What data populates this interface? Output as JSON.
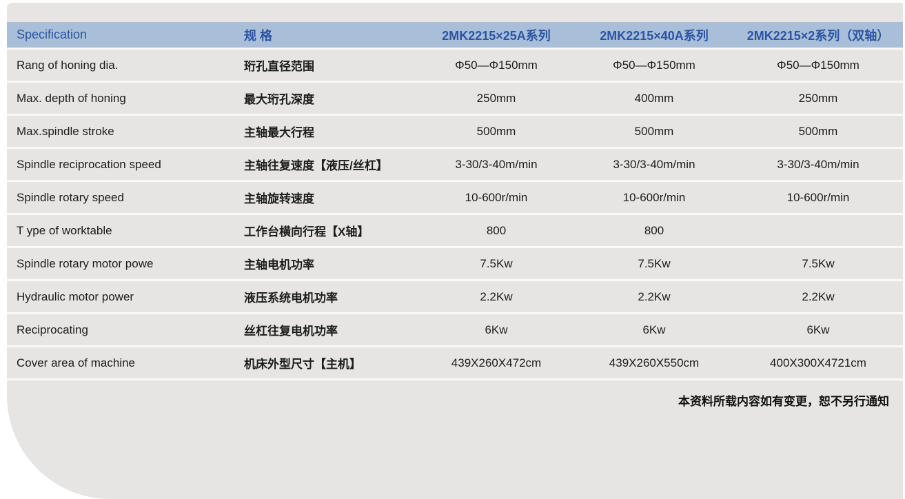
{
  "colors": {
    "page_background": "#ffffff",
    "card_background": "#e6e5e3",
    "header_background": "#a9bed8",
    "header_text": "#2b54a3",
    "body_text": "#1c1c1c",
    "row_separator": "#f9f9f8"
  },
  "table": {
    "headers": {
      "spec_en": "Specification",
      "spec_cn": "规 格",
      "series_a": "2MK2215×25A系列",
      "series_b": "2MK2215×40A系列",
      "series_c": "2MK2215×2系列（双轴）"
    },
    "rows": [
      {
        "en": "Rang of honing dia.",
        "cn": "珩孔直径范围",
        "a": "Φ50—Φ150mm",
        "b": "Φ50—Φ150mm",
        "c": "Φ50—Φ150mm"
      },
      {
        "en": "Max. depth of honing",
        "cn": "最大珩孔深度",
        "a": "250mm",
        "b": "400mm",
        "c": "250mm"
      },
      {
        "en": "Max.spindle stroke",
        "cn": "主轴最大行程",
        "a": "500mm",
        "b": "500mm",
        "c": "500mm"
      },
      {
        "en": "Spindle reciprocation speed",
        "cn": "主轴往复速度【液压/丝杠】",
        "a": "3-30/3-40m/min",
        "b": "3-30/3-40m/min",
        "c": "3-30/3-40m/min"
      },
      {
        "en": "Spindle rotary speed",
        "cn": "主轴旋转速度",
        "a": "10-600r/min",
        "b": "10-600r/min",
        "c": "10-600r/min"
      },
      {
        "en": "T ype of worktable",
        "cn": "工作台横向行程【X轴】",
        "a": "800",
        "b": "800",
        "c": ""
      },
      {
        "en": "Spindle rotary motor powe",
        "cn": "主轴电机功率",
        "a": "7.5Kw",
        "b": "7.5Kw",
        "c": "7.5Kw"
      },
      {
        "en": "Hydraulic motor power",
        "cn": "液压系统电机功率",
        "a": "2.2Kw",
        "b": "2.2Kw",
        "c": "2.2Kw"
      },
      {
        "en": "Reciprocating",
        "cn": "丝杠往复电机功率",
        "a": "6Kw",
        "b": "6Kw",
        "c": "6Kw"
      },
      {
        "en": "Cover area of machine",
        "cn": "机床外型尺寸【主机】",
        "a": "439X260X472cm",
        "b": "439X260X550cm",
        "c": "400X300X4721cm"
      }
    ]
  },
  "footer": {
    "note": "本资料所载内容如有变更，恕不另行通知"
  }
}
